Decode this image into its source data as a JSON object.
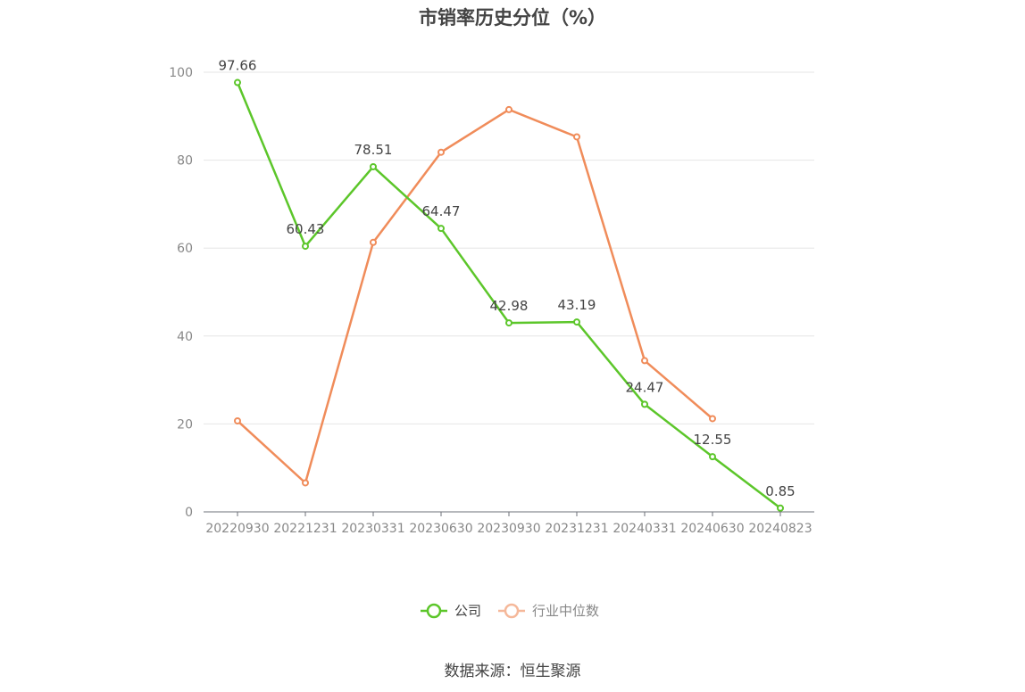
{
  "chart_data": {
    "type": "line",
    "title": "市销率历史分位（%）",
    "categories": [
      "20220930",
      "20221231",
      "20230331",
      "20230630",
      "20230930",
      "20231231",
      "20240331",
      "20240630",
      "20240823"
    ],
    "y_ticks": [
      "0",
      "20",
      "40",
      "60",
      "80",
      "100"
    ],
    "ylim": [
      0,
      100
    ],
    "grid": true,
    "legend_position": "bottom-center",
    "series": [
      {
        "name": "公司",
        "color": "#5cc62a",
        "values": [
          97.66,
          60.43,
          78.51,
          64.47,
          42.98,
          43.19,
          24.47,
          12.55,
          0.85
        ],
        "labels": [
          "97.66",
          "60.43",
          "78.51",
          "64.47",
          "42.98",
          "43.19",
          "24.47",
          "12.55",
          "0.85"
        ]
      },
      {
        "name": "行业中位数",
        "color": "#f08c5a",
        "values": [
          20.7,
          6.6,
          61.3,
          81.8,
          91.5,
          85.3,
          34.4,
          21.2,
          null
        ]
      }
    ]
  },
  "source": "数据来源：恒生聚源"
}
